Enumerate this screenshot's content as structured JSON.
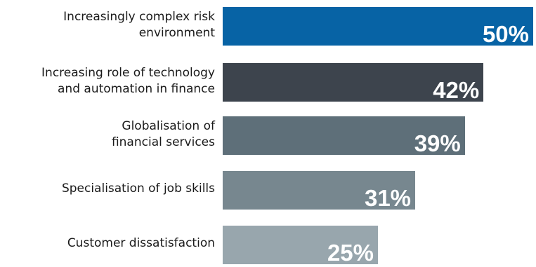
{
  "chart_data": {
    "type": "bar",
    "orientation": "horizontal",
    "categories": [
      "Increasingly complex risk\nenvironment",
      "Increasing role of technology\nand automation in finance",
      "Globalisation of\nfinancial services",
      "Specialisation of job skills",
      "Customer dissatisfaction"
    ],
    "values": [
      50,
      42,
      39,
      31,
      25
    ],
    "value_labels": [
      "50%",
      "42%",
      "39%",
      "31%",
      "25%"
    ],
    "bar_colors": [
      "#0763a5",
      "#3d444d",
      "#5e6f79",
      "#77878f",
      "#98a6ad"
    ],
    "title": "",
    "xlabel": "",
    "ylabel": "",
    "xlim": [
      0,
      50
    ],
    "grid": false,
    "legend": "none"
  }
}
